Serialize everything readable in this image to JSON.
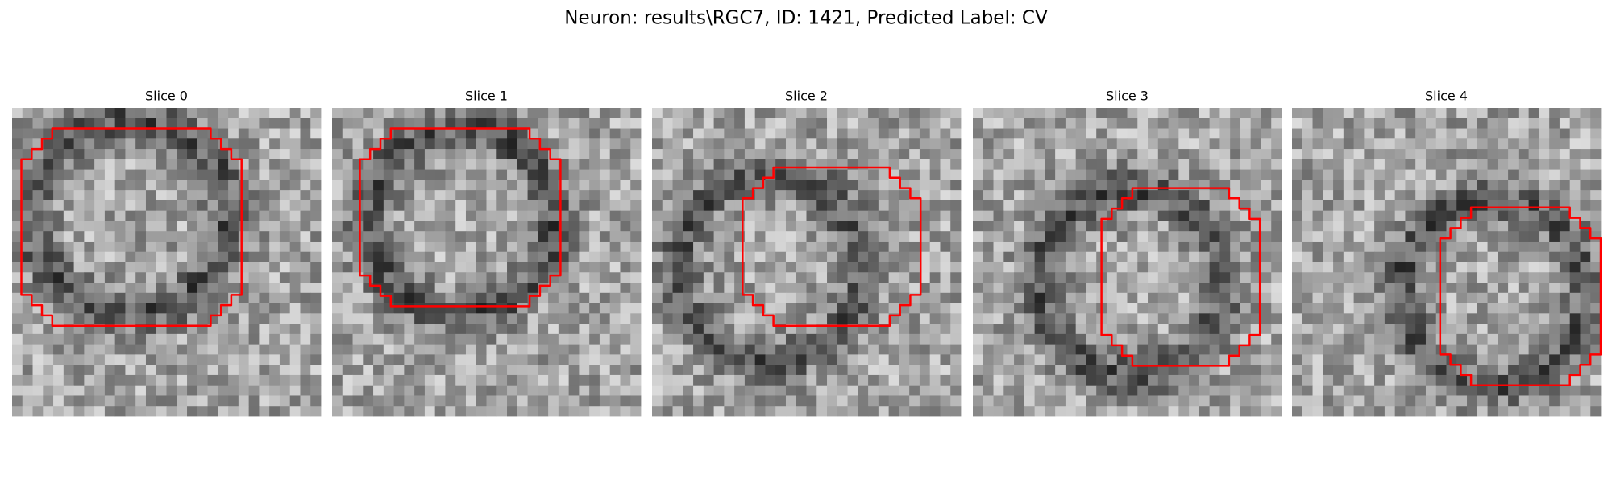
{
  "title": "Neuron: results\\RGC7, ID: 1421, Predicted Label: CV",
  "panels": [
    {
      "title": "Slice 0"
    },
    {
      "title": "Slice 1"
    },
    {
      "title": "Slice 2"
    },
    {
      "title": "Slice 3"
    },
    {
      "title": "Slice 4"
    }
  ]
}
